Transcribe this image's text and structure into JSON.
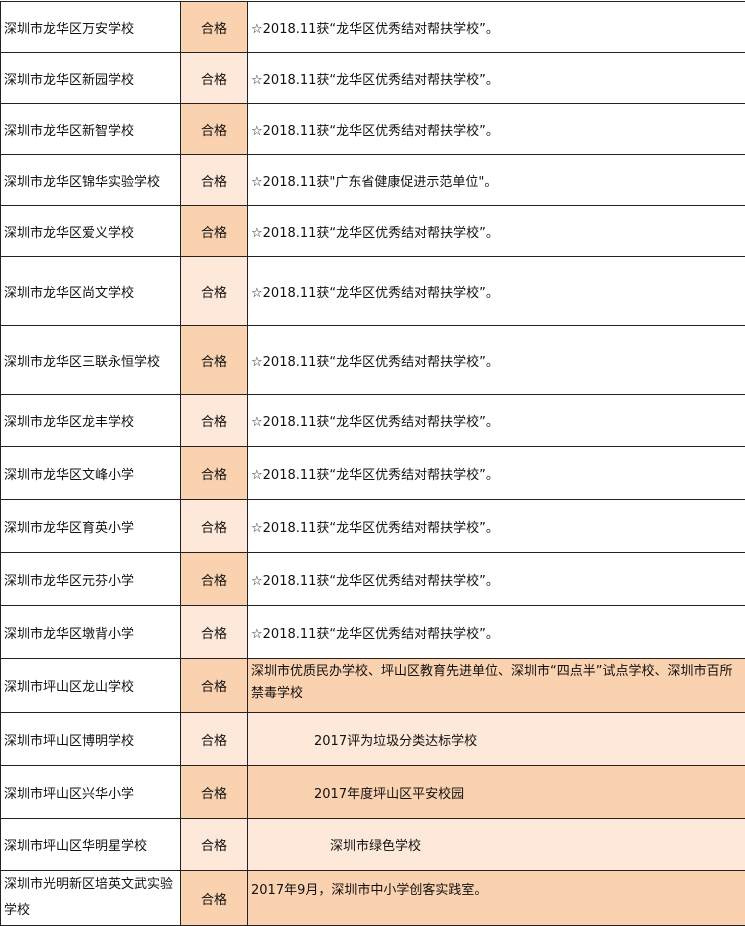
{
  "colors": {
    "dark": "#fbd2b0",
    "light": "#fde8da"
  },
  "rows": [
    {
      "name": "深圳市龙华区万安学校",
      "status": "合格",
      "note": "☆2018.11获“龙华区优秀结对帮扶学校”。"
    },
    {
      "name": "深圳市龙华区新园学校",
      "status": "合格",
      "note": "☆2018.11获“龙华区优秀结对帮扶学校”。"
    },
    {
      "name": "深圳市龙华区新智学校",
      "status": "合格",
      "note": "☆2018.11获“龙华区优秀结对帮扶学校”。"
    },
    {
      "name": "深圳市龙华区锦华实验学校",
      "status": "合格",
      "note": "☆2018.11获\"广东省健康促进示范单位\"。"
    },
    {
      "name": "深圳市龙华区爱义学校",
      "status": "合格",
      "note": "☆2018.11获“龙华区优秀结对帮扶学校”。"
    },
    {
      "name": "深圳市龙华区尚文学校",
      "status": "合格",
      "note": "☆2018.11获“龙华区优秀结对帮扶学校”。"
    },
    {
      "name": "深圳市龙华区三联永恒学校",
      "status": "合格",
      "note": "☆2018.11获“龙华区优秀结对帮扶学校”。"
    },
    {
      "name": "深圳市龙华区龙丰学校",
      "status": "合格",
      "note": "☆2018.11获“龙华区优秀结对帮扶学校”。"
    },
    {
      "name": "深圳市龙华区文峰小学",
      "status": "合格",
      "note": "☆2018.11获“龙华区优秀结对帮扶学校”。"
    },
    {
      "name": "深圳市龙华区育英小学",
      "status": "合格",
      "note": "☆2018.11获“龙华区优秀结对帮扶学校”。"
    },
    {
      "name": "深圳市龙华区元芬小学",
      "status": "合格",
      "note": "☆2018.11获“龙华区优秀结对帮扶学校”。"
    },
    {
      "name": "深圳市龙华区墩背小学",
      "status": "合格",
      "note": "☆2018.11获“龙华区优秀结对帮扶学校”。"
    },
    {
      "name": "深圳市坪山区龙山学校",
      "status": "合格",
      "note": "深圳市优质民办学校、坪山区教育先进单位、深圳市“四点半”试点学校、深圳市百所禁毒学校"
    },
    {
      "name": "深圳市坪山区博明学校",
      "status": "合格",
      "note": "2017评为垃圾分类达标学校"
    },
    {
      "name": "深圳市坪山区兴华小学",
      "status": "合格",
      "note": "2017年度坪山区平安校园"
    },
    {
      "name": "深圳市坪山区华明星学校",
      "status": "合格",
      "note": "深圳市绿色学校"
    },
    {
      "name": "深圳市光明新区培英文武实验学校",
      "status": "合格",
      "note": "2017年9月，深圳市中小学创客实践室。"
    }
  ]
}
